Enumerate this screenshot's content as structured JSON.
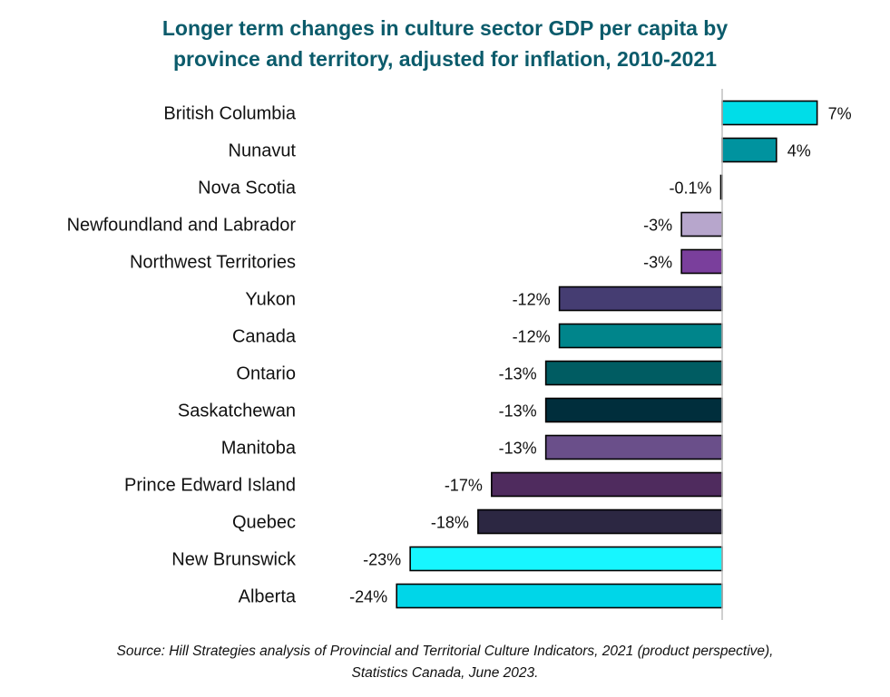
{
  "title_line1": "Longer term changes in culture sector GDP per capita by",
  "title_line2": "province and territory, adjusted for inflation, 2010-2021",
  "source_line1": "Source: Hill Strategies analysis of Provincial and Territorial Culture Indicators, 2021 (product perspective),",
  "source_line2": "Statistics Canada, June 2023.",
  "chart_data": {
    "type": "bar",
    "orientation": "horizontal",
    "categories": [
      "British Columbia",
      "Nunavut",
      "Nova Scotia",
      "Newfoundland and Labrador",
      "Northwest Territories",
      "Yukon",
      "Canada",
      "Ontario",
      "Saskatchewan",
      "Manitoba",
      "Prince Edward Island",
      "Quebec",
      "New Brunswick",
      "Alberta"
    ],
    "values": [
      7,
      4,
      -0.1,
      -3,
      -3,
      -12,
      -12,
      -13,
      -13,
      -13,
      -17,
      -18,
      -23,
      -24
    ],
    "value_labels": [
      "7%",
      "4%",
      "-0.1%",
      "-3%",
      "-3%",
      "-12%",
      "-12%",
      "-13%",
      "-13%",
      "-13%",
      "-17%",
      "-18%",
      "-23%",
      "-24%"
    ],
    "colors": [
      "#00dde8",
      "#00939f",
      "#ffffff",
      "#b7a6cc",
      "#7a3f9c",
      "#453d72",
      "#00858b",
      "#005c62",
      "#002e3c",
      "#6a4f8a",
      "#4f2b5e",
      "#2c2742",
      "#17f6ff",
      "#00d6e8"
    ],
    "xlim": [
      -25,
      8
    ],
    "unit": "%",
    "grid": false,
    "legend": "none"
  }
}
